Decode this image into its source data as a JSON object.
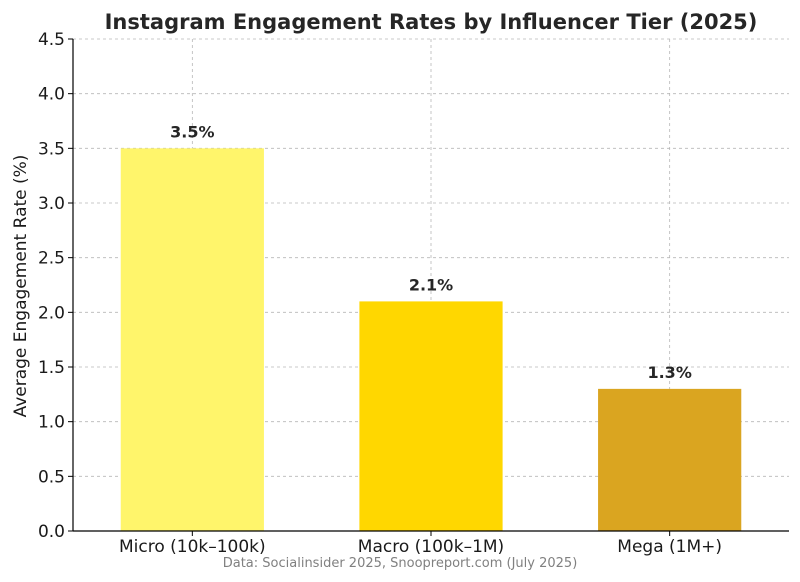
{
  "chart_data": {
    "type": "bar",
    "title": "Instagram Engagement Rates by Influencer Tier (2025)",
    "xlabel": "",
    "ylabel": "Average Engagement Rate (%)",
    "categories": [
      "Micro (10k–100k)",
      "Macro (100k–1M)",
      "Mega (1M+)"
    ],
    "values": [
      3.5,
      2.1,
      1.3
    ],
    "value_labels": [
      "3.5%",
      "2.1%",
      "1.3%"
    ],
    "colors": [
      "#fff56b",
      "#ffd700",
      "#daa520"
    ],
    "ylim": [
      0,
      4.5
    ],
    "yticks": [
      0.0,
      0.5,
      1.0,
      1.5,
      2.0,
      2.5,
      3.0,
      3.5,
      4.0,
      4.5
    ],
    "ytick_labels": [
      "0.0",
      "0.5",
      "1.0",
      "1.5",
      "2.0",
      "2.5",
      "3.0",
      "3.5",
      "4.0",
      "4.5"
    ],
    "grid": true,
    "source_note": "Data: Socialinsider 2025, Snoopreport.com (July 2025)"
  }
}
